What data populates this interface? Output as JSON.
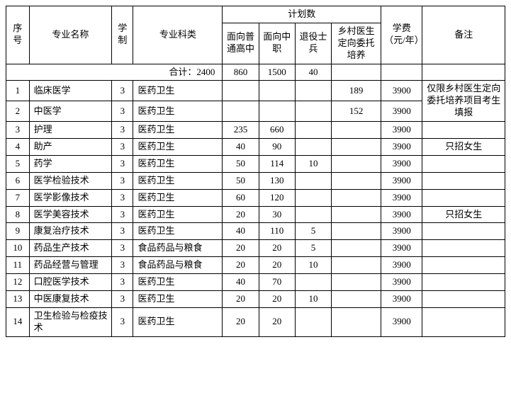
{
  "header": {
    "idx": "序号",
    "name": "专业名称",
    "duration": "学制",
    "category": "专业科类",
    "plan_group": "计划数",
    "plan_p1": "面向普通高中",
    "plan_p2": "面向中职",
    "plan_p3": "退役士兵",
    "plan_p4": "乡村医生定向委托培养",
    "fee": "学费（元/年）",
    "note": "备注"
  },
  "summary": {
    "label": "合计：2400",
    "p1": "860",
    "p2": "1500",
    "p3": "40",
    "p4": "",
    "fee": "",
    "note": ""
  },
  "rows": [
    {
      "idx": "1",
      "name": "临床医学",
      "dur": "3",
      "cat": "医药卫生",
      "p1": "",
      "p2": "",
      "p3": "",
      "p4": "189",
      "fee": "3900",
      "note": ""
    },
    {
      "idx": "2",
      "name": "中医学",
      "dur": "3",
      "cat": "医药卫生",
      "p1": "",
      "p2": "",
      "p3": "",
      "p4": "152",
      "fee": "3900",
      "note": ""
    },
    {
      "idx": "3",
      "name": "护理",
      "dur": "3",
      "cat": "医药卫生",
      "p1": "235",
      "p2": "660",
      "p3": "",
      "p4": "",
      "fee": "3900",
      "note": ""
    },
    {
      "idx": "4",
      "name": "助产",
      "dur": "3",
      "cat": "医药卫生",
      "p1": "40",
      "p2": "90",
      "p3": "",
      "p4": "",
      "fee": "3900",
      "note": "只招女生"
    },
    {
      "idx": "5",
      "name": "药学",
      "dur": "3",
      "cat": "医药卫生",
      "p1": "50",
      "p2": "114",
      "p3": "10",
      "p4": "",
      "fee": "3900",
      "note": ""
    },
    {
      "idx": "6",
      "name": "医学检验技术",
      "dur": "3",
      "cat": "医药卫生",
      "p1": "50",
      "p2": "130",
      "p3": "",
      "p4": "",
      "fee": "3900",
      "note": ""
    },
    {
      "idx": "7",
      "name": "医学影像技术",
      "dur": "3",
      "cat": "医药卫生",
      "p1": "60",
      "p2": "120",
      "p3": "",
      "p4": "",
      "fee": "3900",
      "note": ""
    },
    {
      "idx": "8",
      "name": "医学美容技术",
      "dur": "3",
      "cat": "医药卫生",
      "p1": "20",
      "p2": "30",
      "p3": "",
      "p4": "",
      "fee": "3900",
      "note": "只招女生"
    },
    {
      "idx": "9",
      "name": "康复治疗技术",
      "dur": "3",
      "cat": "医药卫生",
      "p1": "40",
      "p2": "110",
      "p3": "5",
      "p4": "",
      "fee": "3900",
      "note": ""
    },
    {
      "idx": "10",
      "name": "药品生产技术",
      "dur": "3",
      "cat": "食品药品与粮食",
      "p1": "20",
      "p2": "20",
      "p3": "5",
      "p4": "",
      "fee": "3900",
      "note": ""
    },
    {
      "idx": "11",
      "name": "药品经营与管理",
      "dur": "3",
      "cat": "食品药品与粮食",
      "p1": "20",
      "p2": "20",
      "p3": "10",
      "p4": "",
      "fee": "3900",
      "note": ""
    },
    {
      "idx": "12",
      "name": "口腔医学技术",
      "dur": "3",
      "cat": "医药卫生",
      "p1": "40",
      "p2": "70",
      "p3": "",
      "p4": "",
      "fee": "3900",
      "note": ""
    },
    {
      "idx": "13",
      "name": "中医康复技术",
      "dur": "3",
      "cat": "医药卫生",
      "p1": "20",
      "p2": "20",
      "p3": "10",
      "p4": "",
      "fee": "3900",
      "note": ""
    },
    {
      "idx": "14",
      "name": "卫生检验与检疫技术",
      "dur": "3",
      "cat": "医药卫生",
      "p1": "20",
      "p2": "20",
      "p3": "",
      "p4": "",
      "fee": "3900",
      "note": ""
    }
  ],
  "merged_note": "仅限乡村医生定向委托培养项目考生填报"
}
